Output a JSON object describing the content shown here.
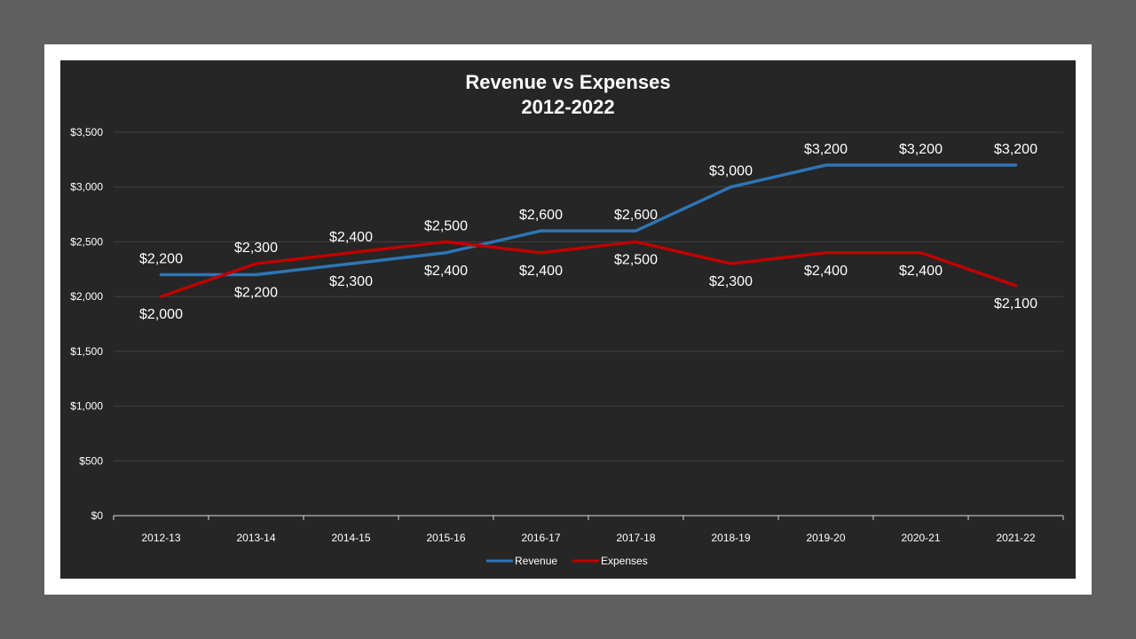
{
  "chart_data": {
    "type": "line",
    "title": "Revenue vs Expenses",
    "subtitle": "2012-2022",
    "categories": [
      "2012-13",
      "2013-14",
      "2014-15",
      "2015-16",
      "2016-17",
      "2017-18",
      "2018-19",
      "2019-20",
      "2020-21",
      "2021-22"
    ],
    "y_ticks": [
      "$0",
      "$500",
      "$1,000",
      "$1,500",
      "$2,000",
      "$2,500",
      "$3,000",
      "$3,500"
    ],
    "ylim": [
      0,
      3500
    ],
    "grid": true,
    "legend_position": "bottom",
    "series": [
      {
        "name": "Revenue",
        "color": "#2e75b6",
        "values": [
          2200,
          2200,
          2300,
          2400,
          2600,
          2600,
          3000,
          3200,
          3200,
          3200
        ],
        "labels": [
          "$2,200",
          "$2,200",
          "$2,300",
          "$2,400",
          "$2,600",
          "$2,600",
          "$3,000",
          "$3,200",
          "$3,200",
          "$3,200"
        ]
      },
      {
        "name": "Expenses",
        "color": "#c00000",
        "values": [
          2000,
          2300,
          2400,
          2500,
          2400,
          2500,
          2300,
          2400,
          2400,
          2100
        ],
        "labels": [
          "$2,000",
          "$2,300",
          "$2,400",
          "$2,500",
          "$2,400",
          "$2,500",
          "$2,300",
          "$2,400",
          "$2,400",
          "$2,100"
        ]
      }
    ]
  }
}
